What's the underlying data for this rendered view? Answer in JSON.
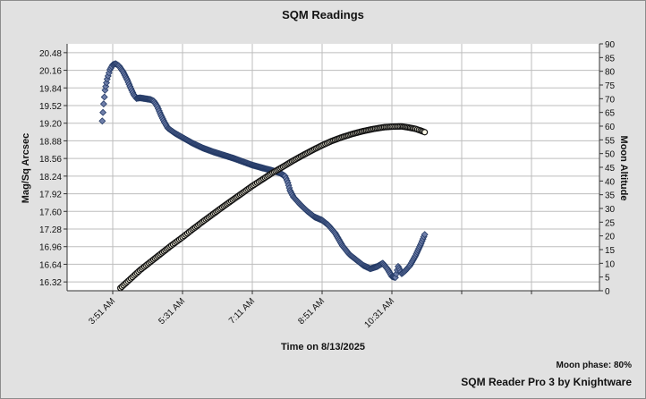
{
  "header": {
    "title": "SQM Readings"
  },
  "footer": {
    "moon_phase": "Moon phase: 80%",
    "credit": "SQM Reader Pro 3 by Knightware"
  },
  "colors": {
    "plot_background": "#ffffff",
    "grid": "#bdbdbd",
    "sqm_marker_fill": "#6f7faa",
    "sqm_marker_stroke": "#243a66",
    "moon_marker_fill": "#fffbe8",
    "moon_marker_stroke": "#111111"
  },
  "chart_data": {
    "type": "scatter",
    "title": "SQM Readings",
    "xlabel": "Time on 8/13/2025",
    "ylabel": "Mag/Sq Arcsec",
    "y2label": "Moon Altitude",
    "x_ticks": [
      "3:51 AM",
      "5:31 AM",
      "7:11 AM",
      "8:51 AM",
      "10:31 AM"
    ],
    "y_ticks": [
      "20.48",
      "20.16",
      "19.84",
      "19.52",
      "19.20",
      "18.88",
      "18.56",
      "18.24",
      "17.92",
      "17.60",
      "17.28",
      "16.96",
      "16.64",
      "16.32"
    ],
    "y2_ticks": [
      "90",
      "85",
      "80",
      "75",
      "70",
      "65",
      "60",
      "55",
      "50",
      "45",
      "40",
      "35",
      "30",
      "25",
      "20",
      "15",
      "10",
      "5",
      "0"
    ],
    "ylim": [
      16.16,
      20.64
    ],
    "y2lim": [
      0,
      90
    ],
    "grid": true,
    "series": [
      {
        "marker": "diamond",
        "axis": "left",
        "points": [
          [
            "3:36 AM",
            19.24
          ],
          [
            "3:38 AM",
            19.55
          ],
          [
            "3:40 AM",
            19.8
          ],
          [
            "3:43 AM",
            20.0
          ],
          [
            "3:47 AM",
            20.17
          ],
          [
            "3:51 AM",
            20.26
          ],
          [
            "3:55 AM",
            20.28
          ],
          [
            "4:00 AM",
            20.24
          ],
          [
            "4:06 AM",
            20.13
          ],
          [
            "4:12 AM",
            19.98
          ],
          [
            "4:17 AM",
            19.83
          ],
          [
            "4:21 AM",
            19.72
          ],
          [
            "4:25 AM",
            19.65
          ],
          [
            "4:30 AM",
            19.66
          ],
          [
            "4:35 AM",
            19.65
          ],
          [
            "4:40 AM",
            19.64
          ],
          [
            "4:45 AM",
            19.63
          ],
          [
            "4:50 AM",
            19.6
          ],
          [
            "4:55 AM",
            19.5
          ],
          [
            "5:00 AM",
            19.35
          ],
          [
            "5:05 AM",
            19.22
          ],
          [
            "5:10 AM",
            19.11
          ],
          [
            "5:20 AM",
            19.02
          ],
          [
            "5:31 AM",
            18.94
          ],
          [
            "5:45 AM",
            18.84
          ],
          [
            "6:00 AM",
            18.75
          ],
          [
            "6:15 AM",
            18.68
          ],
          [
            "6:30 AM",
            18.62
          ],
          [
            "6:45 AM",
            18.56
          ],
          [
            "7:00 AM",
            18.49
          ],
          [
            "7:11 AM",
            18.44
          ],
          [
            "7:25 AM",
            18.39
          ],
          [
            "7:40 AM",
            18.34
          ],
          [
            "7:50 AM",
            18.3
          ],
          [
            "7:58 AM",
            18.24
          ],
          [
            "8:02 AM",
            18.12
          ],
          [
            "8:05 AM",
            17.98
          ],
          [
            "8:10 AM",
            17.86
          ],
          [
            "8:20 AM",
            17.72
          ],
          [
            "8:30 AM",
            17.6
          ],
          [
            "8:40 AM",
            17.5
          ],
          [
            "8:51 AM",
            17.44
          ],
          [
            "9:00 AM",
            17.35
          ],
          [
            "9:10 AM",
            17.2
          ],
          [
            "9:20 AM",
            16.98
          ],
          [
            "9:30 AM",
            16.82
          ],
          [
            "9:40 AM",
            16.72
          ],
          [
            "9:50 AM",
            16.62
          ],
          [
            "10:00 AM",
            16.56
          ],
          [
            "10:10 AM",
            16.6
          ],
          [
            "10:18 AM",
            16.66
          ],
          [
            "10:25 AM",
            16.55
          ],
          [
            "10:31 AM",
            16.42
          ],
          [
            "10:36 AM",
            16.4
          ],
          [
            "10:40 AM",
            16.6
          ],
          [
            "10:45 AM",
            16.47
          ],
          [
            "10:50 AM",
            16.52
          ],
          [
            "10:57 AM",
            16.62
          ],
          [
            "11:05 AM",
            16.8
          ],
          [
            "11:13 AM",
            17.02
          ],
          [
            "11:18 AM",
            17.18
          ]
        ]
      },
      {
        "marker": "circle",
        "axis": "right",
        "points": [
          [
            "4:02 AM",
            1
          ],
          [
            "4:15 AM",
            4
          ],
          [
            "4:30 AM",
            7.5
          ],
          [
            "4:45 AM",
            10.5
          ],
          [
            "5:00 AM",
            13.5
          ],
          [
            "5:15 AM",
            16.5
          ],
          [
            "5:31 AM",
            19.5
          ],
          [
            "5:45 AM",
            22.3
          ],
          [
            "6:00 AM",
            25.2
          ],
          [
            "6:15 AM",
            28
          ],
          [
            "6:30 AM",
            30.8
          ],
          [
            "6:45 AM",
            33.5
          ],
          [
            "7:00 AM",
            36.2
          ],
          [
            "7:11 AM",
            38.2
          ],
          [
            "7:25 AM",
            40.5
          ],
          [
            "7:40 AM",
            43
          ],
          [
            "7:55 AM",
            45.2
          ],
          [
            "8:10 AM",
            47.5
          ],
          [
            "8:25 AM",
            49.6
          ],
          [
            "8:40 AM",
            51.6
          ],
          [
            "8:51 AM",
            53
          ],
          [
            "9:05 AM",
            54.6
          ],
          [
            "9:20 AM",
            56
          ],
          [
            "9:35 AM",
            57.2
          ],
          [
            "9:50 AM",
            58.2
          ],
          [
            "10:05 AM",
            59
          ],
          [
            "10:20 AM",
            59.6
          ],
          [
            "10:31 AM",
            59.8
          ],
          [
            "10:45 AM",
            59.9
          ],
          [
            "10:55 AM",
            59.5
          ],
          [
            "11:05 AM",
            59
          ],
          [
            "11:12 AM",
            58.4
          ],
          [
            "11:18 AM",
            57.8
          ]
        ]
      }
    ]
  }
}
